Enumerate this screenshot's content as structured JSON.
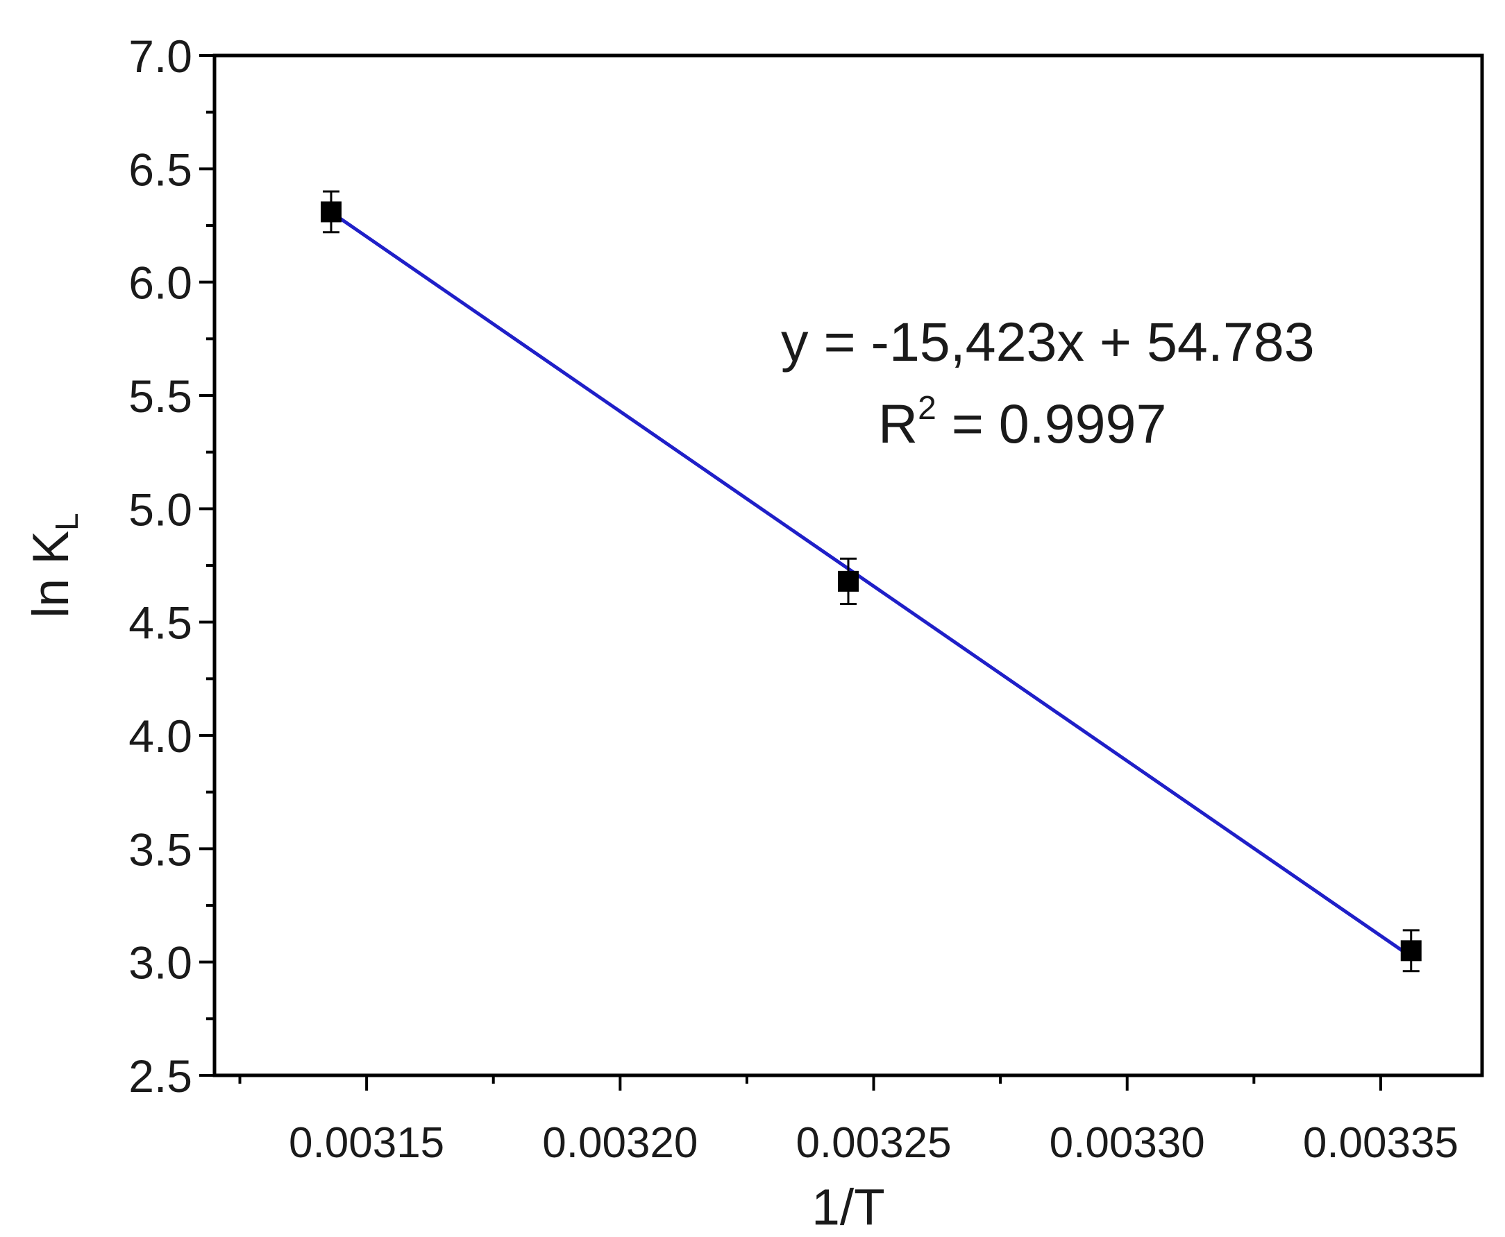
{
  "chart_data": {
    "type": "scatter",
    "xlabel": "1/T",
    "ylabel": {
      "main": "ln K",
      "sub": "L"
    },
    "xlim": [
      0.00312,
      0.00337
    ],
    "ylim": [
      2.5,
      7.0
    ],
    "x_ticks": [
      0.00315,
      0.0032,
      0.00325,
      0.0033,
      0.00335
    ],
    "x_tick_labels": [
      "0.00315",
      "0.00320",
      "0.00325",
      "0.00330",
      "0.00335"
    ],
    "y_ticks": [
      2.5,
      3.0,
      3.5,
      4.0,
      4.5,
      5.0,
      5.5,
      6.0,
      6.5,
      7.0
    ],
    "y_tick_labels": [
      "2.5",
      "3.0",
      "3.5",
      "4.0",
      "4.5",
      "5.0",
      "5.5",
      "6.0",
      "6.5",
      "7.0"
    ],
    "grid": false,
    "points": [
      {
        "x": 0.003143,
        "y": 6.31,
        "err": 0.09
      },
      {
        "x": 0.003245,
        "y": 4.68,
        "err": 0.1
      },
      {
        "x": 0.003356,
        "y": 3.05,
        "err": 0.09
      }
    ],
    "fit_line": {
      "slope": -15423,
      "intercept": 54.783,
      "x_range": [
        0.003143,
        0.003356
      ]
    },
    "annotation": {
      "equation": "y = -15,423x + 54.783",
      "r2_label": "R",
      "r2_exp": "2",
      "r2_value": " = 0.9997"
    },
    "colors": {
      "marker": "#000000",
      "fit_line": "#1f1fc8",
      "axes": "#000000"
    }
  }
}
